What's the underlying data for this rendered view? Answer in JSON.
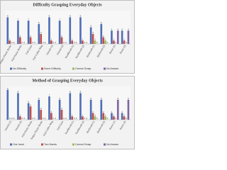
{
  "chart_data": [
    {
      "type": "bar",
      "title": "Difficulty Grasping Everyday Objects",
      "categories": [
        "Empty Plastic Bottle",
        "Full Plastic Bottle",
        "Full Glass",
        "Full Coffee Mug",
        "Utensil (1)",
        "Utensil (2)",
        "Toothbrush (1)",
        "Toothbrush (2)",
        "Hairbrush (1)",
        "Hairbrush (2)",
        "Razor (1)",
        "Razor (2)"
      ],
      "series": [
        {
          "name": "No Difficulty",
          "color": "#4f6fb5",
          "values": [
            8,
            7,
            7,
            6,
            8,
            7,
            8,
            8,
            5,
            6,
            4,
            4
          ]
        },
        {
          "name": "Some Difficulty",
          "color": "#c0504d",
          "values": [
            1,
            2,
            2,
            3,
            1,
            2,
            1,
            1,
            3,
            2,
            1,
            1
          ]
        },
        {
          "name": "Cannot Grasp",
          "color": "#9bbb59",
          "values": [
            0,
            0,
            0,
            0,
            0,
            0,
            0,
            0,
            1,
            1,
            0,
            0
          ]
        },
        {
          "name": "No Answer",
          "color": "#8064a2",
          "values": [
            0,
            0,
            0,
            0,
            0,
            0,
            0,
            0,
            0,
            0,
            4,
            4
          ]
        }
      ],
      "ylim": [
        0,
        10
      ]
    },
    {
      "type": "bar",
      "title": "Method of Grasping Everyday Objects",
      "categories": [
        "Utensil (1)",
        "Utensil (2)",
        "Full Plastic Bottle",
        "Empty Plastic Bottle",
        "Full Coffee Mug",
        "Full Glass",
        "Toothbrush (1)",
        "Toothbrush (2)",
        "Hairbrush (1)",
        "Hairbrush (2)",
        "Razor (1)",
        "Razor (2)"
      ],
      "series": [
        {
          "name": "One hand",
          "color": "#4f6fb5",
          "values": [
            9,
            8,
            5,
            6,
            7,
            6,
            8,
            8,
            6,
            6,
            2,
            2
          ]
        },
        {
          "name": "Two Hands",
          "color": "#c0504d",
          "values": [
            0,
            1,
            4,
            3,
            2,
            3,
            1,
            1,
            2,
            2,
            1,
            1
          ]
        },
        {
          "name": "Cannot Grasp",
          "color": "#9bbb59",
          "values": [
            0,
            0,
            0,
            0,
            0,
            0,
            0,
            0,
            1,
            1,
            0,
            0
          ]
        },
        {
          "name": "No Answer",
          "color": "#8064a2",
          "values": [
            0,
            0,
            0,
            0,
            0,
            0,
            0,
            0,
            0,
            0,
            6,
            6
          ]
        }
      ],
      "ylim": [
        0,
        10
      ]
    }
  ]
}
